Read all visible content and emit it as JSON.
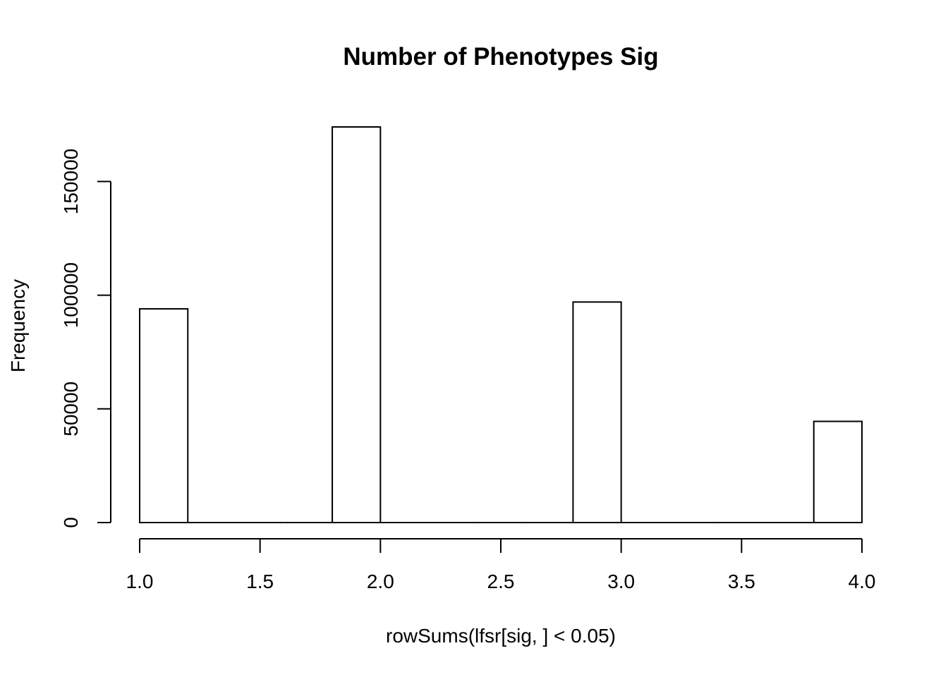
{
  "chart_data": {
    "type": "bar",
    "subtype": "histogram",
    "title": "Number of Phenotypes Sig",
    "xlabel": "rowSums(lfsr[sig, ] < 0.05)",
    "ylabel": "Frequency",
    "bins": [
      {
        "x0": 1.0,
        "x1": 1.2,
        "count": 94000
      },
      {
        "x0": 1.2,
        "x1": 1.4,
        "count": 0
      },
      {
        "x0": 1.4,
        "x1": 1.6,
        "count": 0
      },
      {
        "x0": 1.6,
        "x1": 1.8,
        "count": 0
      },
      {
        "x0": 1.8,
        "x1": 2.0,
        "count": 174000
      },
      {
        "x0": 2.0,
        "x1": 2.2,
        "count": 0
      },
      {
        "x0": 2.2,
        "x1": 2.4,
        "count": 0
      },
      {
        "x0": 2.4,
        "x1": 2.6,
        "count": 0
      },
      {
        "x0": 2.6,
        "x1": 2.8,
        "count": 0
      },
      {
        "x0": 2.8,
        "x1": 3.0,
        "count": 97000
      },
      {
        "x0": 3.0,
        "x1": 3.2,
        "count": 0
      },
      {
        "x0": 3.2,
        "x1": 3.4,
        "count": 0
      },
      {
        "x0": 3.4,
        "x1": 3.6,
        "count": 0
      },
      {
        "x0": 3.6,
        "x1": 3.8,
        "count": 0
      },
      {
        "x0": 3.8,
        "x1": 4.0,
        "count": 44500
      }
    ],
    "xlim": [
      1.0,
      4.0
    ],
    "ylim": [
      0,
      174000
    ],
    "x_ticks": [
      1.0,
      1.5,
      2.0,
      2.5,
      3.0,
      3.5,
      4.0
    ],
    "x_tick_labels": [
      "1.0",
      "1.5",
      "2.0",
      "2.5",
      "3.0",
      "3.5",
      "4.0"
    ],
    "y_ticks": [
      0,
      50000,
      100000,
      150000
    ],
    "y_tick_labels": [
      "0",
      "50000",
      "100000",
      "150000"
    ],
    "grid": false,
    "legend": "none",
    "bar_fill": "#ffffff",
    "bar_stroke": "#000000"
  }
}
